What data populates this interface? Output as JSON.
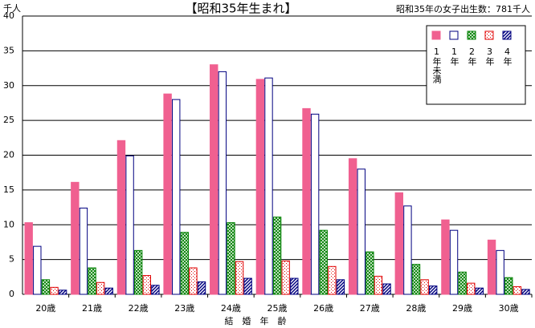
{
  "chart_data": {
    "type": "bar",
    "title": "【昭和35年生まれ】",
    "subtitle": "昭和35年の女子出生数：781千人",
    "y_label": "千人",
    "x_label": "結　婚　年　齢",
    "categories": [
      "20歳",
      "21歳",
      "22歳",
      "23歳",
      "24歳",
      "25歳",
      "26歳",
      "27歳",
      "28歳",
      "29歳",
      "30歳"
    ],
    "series": [
      {
        "name": "1年未満",
        "color": "#f06090",
        "fill": "solid",
        "values": [
          10.3,
          16.1,
          22.1,
          28.8,
          33.0,
          30.9,
          26.7,
          19.5,
          14.6,
          10.7,
          7.8
        ]
      },
      {
        "name": "1年",
        "color": "#000080",
        "fill": "outline",
        "values": [
          6.9,
          12.4,
          19.9,
          28.0,
          32.0,
          31.1,
          25.9,
          18.0,
          12.7,
          9.2,
          6.3
        ]
      },
      {
        "name": "2年",
        "color": "#008000",
        "fill": "crosshatch",
        "values": [
          2.1,
          3.8,
          6.3,
          8.9,
          10.3,
          11.1,
          9.2,
          6.1,
          4.3,
          3.2,
          2.4
        ]
      },
      {
        "name": "3年",
        "color": "#e00000",
        "fill": "dots",
        "values": [
          1.0,
          1.7,
          2.7,
          3.8,
          4.7,
          4.8,
          4.0,
          2.6,
          2.1,
          1.6,
          1.1
        ]
      },
      {
        "name": "4年",
        "color": "#000080",
        "fill": "stripes",
        "values": [
          0.6,
          0.9,
          1.3,
          1.8,
          2.3,
          2.3,
          2.1,
          1.5,
          1.2,
          0.9,
          0.7
        ]
      }
    ],
    "ylim": [
      0,
      40
    ],
    "yticks": [
      0,
      5,
      10,
      15,
      20,
      25,
      30,
      35,
      40
    ],
    "grid": true
  }
}
